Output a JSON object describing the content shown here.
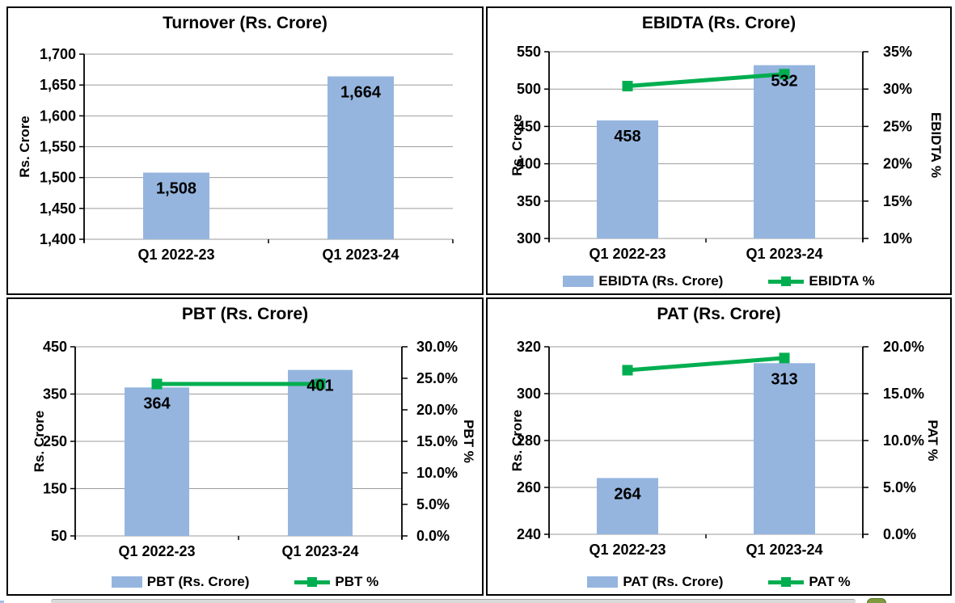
{
  "colors": {
    "bar_fill": "#95B5DF",
    "line_green": "#00AE50",
    "grid": "#9B9B9B",
    "axis": "#000000",
    "text": "#000000",
    "panel_border": "#000000",
    "scroll_strip": "#d9d9d9"
  },
  "chart_data": [
    {
      "type": "bar",
      "title": "Turnover (Rs. Crore)",
      "categories": [
        "Q1 2022-23",
        "Q1 2023-24"
      ],
      "series": [
        {
          "name": "Turnover (Rs. Crore)",
          "kind": "bar",
          "axis": "left",
          "values": [
            1508,
            1664
          ],
          "labels": [
            "1,508",
            "1,664"
          ]
        }
      ],
      "y_left": {
        "label": "Rs. Crore",
        "min": 1400,
        "max": 1700,
        "step": 50,
        "ticks": [
          "1,700",
          "1,650",
          "1,600",
          "1,550",
          "1,500",
          "1,450",
          "1,400"
        ]
      },
      "grid": true,
      "legend": null
    },
    {
      "type": "bar+line",
      "title": "EBIDTA (Rs. Crore)",
      "categories": [
        "Q1 2022-23",
        "Q1 2023-24"
      ],
      "series": [
        {
          "name": "EBIDTA (Rs. Crore)",
          "kind": "bar",
          "axis": "left",
          "values": [
            458,
            532
          ],
          "labels": [
            "458",
            "532"
          ]
        },
        {
          "name": "EBIDTA %",
          "kind": "line",
          "axis": "right",
          "values": [
            30.4,
            32.0
          ]
        }
      ],
      "y_left": {
        "label": "Rs. Crore",
        "min": 300,
        "max": 550,
        "step": 50,
        "ticks": [
          "550",
          "500",
          "450",
          "400",
          "350",
          "300"
        ]
      },
      "y_right": {
        "label": "EBIDTA %",
        "min": 10,
        "max": 35,
        "step": 5,
        "ticks": [
          "35%",
          "30%",
          "25%",
          "20%",
          "15%",
          "10%"
        ]
      },
      "grid": true,
      "legend": {
        "bar": "EBIDTA (Rs. Crore)",
        "line": "EBIDTA %"
      }
    },
    {
      "type": "bar+line",
      "title": "PBT (Rs. Crore)",
      "categories": [
        "Q1 2022-23",
        "Q1 2023-24"
      ],
      "series": [
        {
          "name": "PBT (Rs. Crore)",
          "kind": "bar",
          "axis": "left",
          "values": [
            364,
            401
          ],
          "labels": [
            "364",
            "401"
          ]
        },
        {
          "name": "PBT %",
          "kind": "line",
          "axis": "right",
          "values": [
            24.1,
            24.1
          ]
        }
      ],
      "y_left": {
        "label": "Rs. Crore",
        "min": 50,
        "max": 450,
        "step": 100,
        "ticks": [
          "450",
          "350",
          "250",
          "150",
          "50"
        ]
      },
      "y_right": {
        "label": "PBT %",
        "min": 0,
        "max": 30,
        "step": 5,
        "ticks": [
          "30.0%",
          "25.0%",
          "20.0%",
          "15.0%",
          "10.0%",
          "5.0%",
          "0.0%"
        ]
      },
      "grid": true,
      "legend": {
        "bar": "PBT (Rs. Crore)",
        "line": "PBT %"
      }
    },
    {
      "type": "bar+line",
      "title": "PAT (Rs. Crore)",
      "categories": [
        "Q1 2022-23",
        "Q1 2023-24"
      ],
      "series": [
        {
          "name": "PAT (Rs. Crore)",
          "kind": "bar",
          "axis": "left",
          "values": [
            264,
            313
          ],
          "labels": [
            "264",
            "313"
          ]
        },
        {
          "name": "PAT %",
          "kind": "line",
          "axis": "right",
          "values": [
            17.5,
            18.8
          ]
        }
      ],
      "y_left": {
        "label": "Rs. Crore",
        "min": 240,
        "max": 320,
        "step": 20,
        "ticks": [
          "320",
          "300",
          "280",
          "260",
          "240"
        ]
      },
      "y_right": {
        "label": "PAT %",
        "min": 0,
        "max": 20,
        "step": 5,
        "ticks": [
          "20.0%",
          "15.0%",
          "10.0%",
          "5.0%",
          "0.0%"
        ]
      },
      "grid": true,
      "legend": {
        "bar": "PAT (Rs. Crore)",
        "line": "PAT %"
      }
    }
  ]
}
